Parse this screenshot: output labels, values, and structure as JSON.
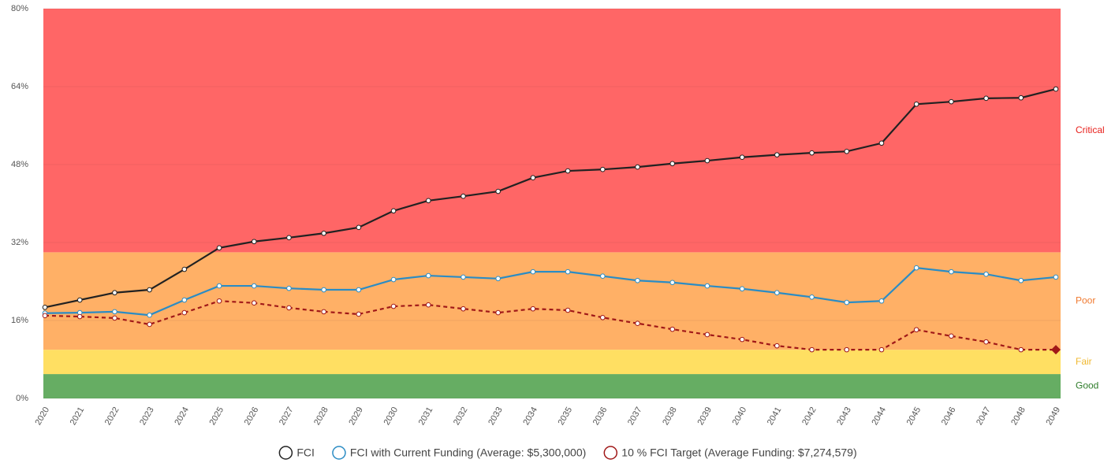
{
  "chart_data": {
    "type": "line",
    "categories": [
      "2020",
      "2021",
      "2022",
      "2023",
      "2024",
      "2025",
      "2026",
      "2027",
      "2028",
      "2029",
      "2030",
      "2031",
      "2032",
      "2033",
      "2034",
      "2035",
      "2036",
      "2037",
      "2038",
      "2039",
      "2040",
      "2041",
      "2042",
      "2043",
      "2044",
      "2045",
      "2046",
      "2047",
      "2048",
      "2049"
    ],
    "ylim": [
      0,
      80
    ],
    "yticks": [
      {
        "value": 0,
        "label": "0%"
      },
      {
        "value": 16,
        "label": "16%"
      },
      {
        "value": 32,
        "label": "32%"
      },
      {
        "value": 48,
        "label": "48%"
      },
      {
        "value": 64,
        "label": "64%"
      },
      {
        "value": 80,
        "label": "80%"
      }
    ],
    "grid": true,
    "bands": [
      {
        "name": "Good",
        "from": 0,
        "to": 5,
        "color": "#66ad63",
        "label_color": "#2f7d2b"
      },
      {
        "name": "Fair",
        "from": 5,
        "to": 10,
        "color": "#ffdf62",
        "label_color": "#f0b830"
      },
      {
        "name": "Poor",
        "from": 10,
        "to": 30,
        "color": "#ffb066",
        "label_color": "#f07a30"
      },
      {
        "name": "Critical",
        "from": 30,
        "to": 80,
        "color": "#ff6666",
        "label_color": "#e8201c"
      }
    ],
    "series": [
      {
        "name": "FCI",
        "color": "#222222",
        "dashed": false,
        "values": [
          18.7,
          20.2,
          21.7,
          22.3,
          26.5,
          30.9,
          32.2,
          33.0,
          33.9,
          35.1,
          38.5,
          40.6,
          41.5,
          42.5,
          45.3,
          46.7,
          47.0,
          47.5,
          48.2,
          48.8,
          49.5,
          50.0,
          50.4,
          50.7,
          52.4,
          60.4,
          60.9,
          61.6,
          61.7,
          63.5
        ]
      },
      {
        "name": "FCI with Current Funding (Average: $5,300,000)",
        "color": "#2b8cc4",
        "dashed": false,
        "values": [
          17.5,
          17.6,
          17.8,
          17.1,
          20.2,
          23.1,
          23.1,
          22.6,
          22.3,
          22.3,
          24.4,
          25.2,
          24.9,
          24.6,
          26.0,
          26.0,
          25.1,
          24.2,
          23.8,
          23.1,
          22.5,
          21.7,
          20.8,
          19.7,
          20.0,
          26.8,
          26.0,
          25.5,
          24.2,
          24.9
        ]
      },
      {
        "name": "10 % FCI Target (Average Funding: $7,274,579)",
        "color": "#a01818",
        "dashed": true,
        "end_marker": "diamond",
        "values": [
          17.0,
          16.8,
          16.5,
          15.2,
          17.6,
          20.0,
          19.6,
          18.6,
          17.8,
          17.3,
          18.9,
          19.2,
          18.4,
          17.6,
          18.4,
          18.1,
          16.6,
          15.4,
          14.2,
          13.1,
          12.1,
          10.8,
          10.0,
          10.0,
          10.0,
          14.1,
          12.8,
          11.6,
          10.0,
          10.0
        ]
      }
    ],
    "legend": "bottom"
  }
}
